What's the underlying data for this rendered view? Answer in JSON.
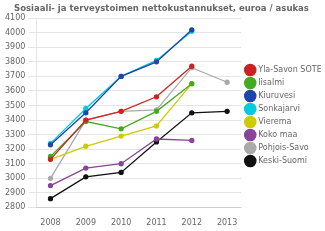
{
  "chart_data": {
    "type": "line",
    "title": "Sosiaali- ja terveystoimen nettokustannukset, euroa / asukas",
    "x": [
      2008,
      2009,
      2010,
      2011,
      2012,
      2013
    ],
    "xlim": [
      2007.6,
      2013.4
    ],
    "xticks": [
      2008,
      2009,
      2010,
      2011,
      2012,
      2013
    ],
    "series": [
      {
        "name": "Yla-Savon SOTE",
        "color": "#cc2222",
        "values": [
          3130,
          3400,
          3460,
          3560,
          3770,
          null
        ]
      },
      {
        "name": "Iisalmi",
        "color": "#44aa22",
        "values": [
          3150,
          3390,
          3340,
          3460,
          3650,
          null
        ]
      },
      {
        "name": "Kiuruvesi",
        "color": "#2244aa",
        "values": [
          3230,
          3450,
          3700,
          3800,
          4020,
          null
        ]
      },
      {
        "name": "Sonkajarvi",
        "color": "#00ccdd",
        "values": [
          3240,
          3480,
          3700,
          3810,
          4010,
          null
        ]
      },
      {
        "name": "Vierema",
        "color": "#cccc00",
        "values": [
          3130,
          3220,
          3290,
          3360,
          3650,
          null
        ]
      },
      {
        "name": "Koko maa",
        "color": "#884499",
        "values": [
          2950,
          3070,
          3100,
          3270,
          3260,
          null
        ]
      },
      {
        "name": "Pohjois-Savo",
        "color": "#aaaaaa",
        "values": [
          3000,
          3400,
          3460,
          3470,
          3760,
          3660
        ]
      },
      {
        "name": "Keski-Suomi",
        "color": "#111111",
        "values": [
          2860,
          3010,
          3040,
          3250,
          3450,
          3460
        ]
      }
    ],
    "ylim": [
      2800,
      4100
    ],
    "yticks": [
      2800,
      2900,
      3000,
      3100,
      3200,
      3300,
      3400,
      3500,
      3600,
      3700,
      3800,
      3900,
      4000,
      4100
    ],
    "grid": "y",
    "legend": "right",
    "marker": "circle"
  }
}
